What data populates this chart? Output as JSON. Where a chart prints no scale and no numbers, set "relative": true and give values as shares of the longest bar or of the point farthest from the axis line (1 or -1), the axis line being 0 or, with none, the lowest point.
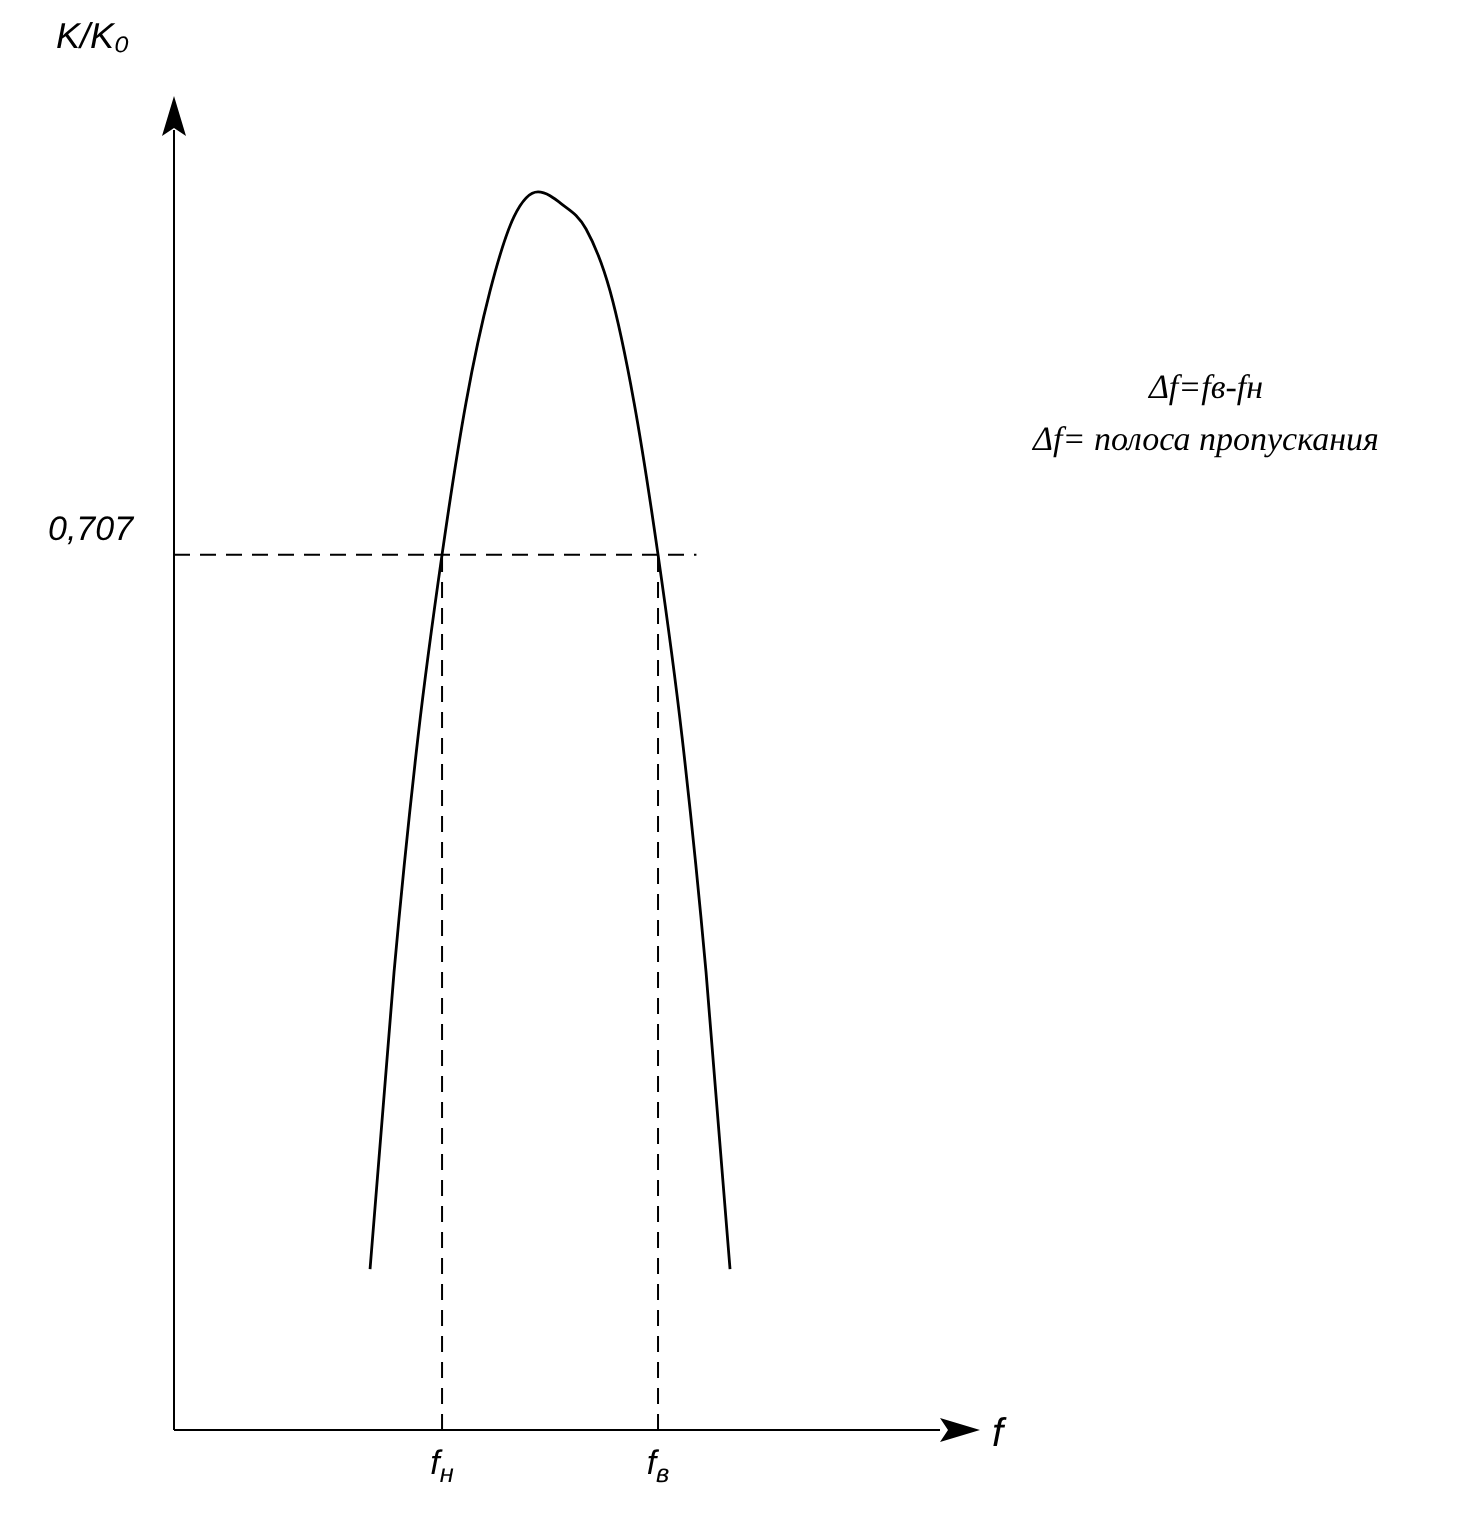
{
  "chart_data": {
    "type": "line",
    "relative": true,
    "ylabel": "K/K₀",
    "xlabel": "f",
    "categories": [
      null,
      null,
      null,
      null,
      null,
      null,
      null,
      null,
      null,
      null,
      null,
      "f$_{н}$",
      null,
      null,
      null,
      null,
      null,
      null,
      null,
      null,
      "f$_{в}$",
      null,
      null,
      null,
      null,
      null,
      null,
      null,
      null,
      null,
      null,
      null
    ],
    "series": [
      {
        "color": "#000000",
        "values": [
          null,
          null,
          null,
          null,
          null,
          null,
          null,
          null,
          0.13,
          0.37,
          0.56,
          0.707,
          0.83,
          0.92,
          0.98,
          1,
          0.99,
          0.97,
          0.92,
          0.83,
          0.707,
          0.56,
          0.37,
          0.13,
          null,
          null,
          null,
          null,
          null,
          null,
          null,
          null
        ]
      }
    ],
    "ref_lines": [
      {
        "axis": "y",
        "value": 0.707,
        "label": "0,707",
        "line_style": "dashed"
      },
      {
        "axis": "x",
        "value": "f$_{н}$",
        "line_style": "dashed"
      },
      {
        "axis": "x",
        "value": "f$_{в}$",
        "line_style": "dashed"
      }
    ],
    "annotations": [
      "Δf=fв-fн",
      "Δf= полоса пропускания"
    ],
    "marker": "none",
    "line_style": "solid",
    "legend": false,
    "grid": false
  }
}
